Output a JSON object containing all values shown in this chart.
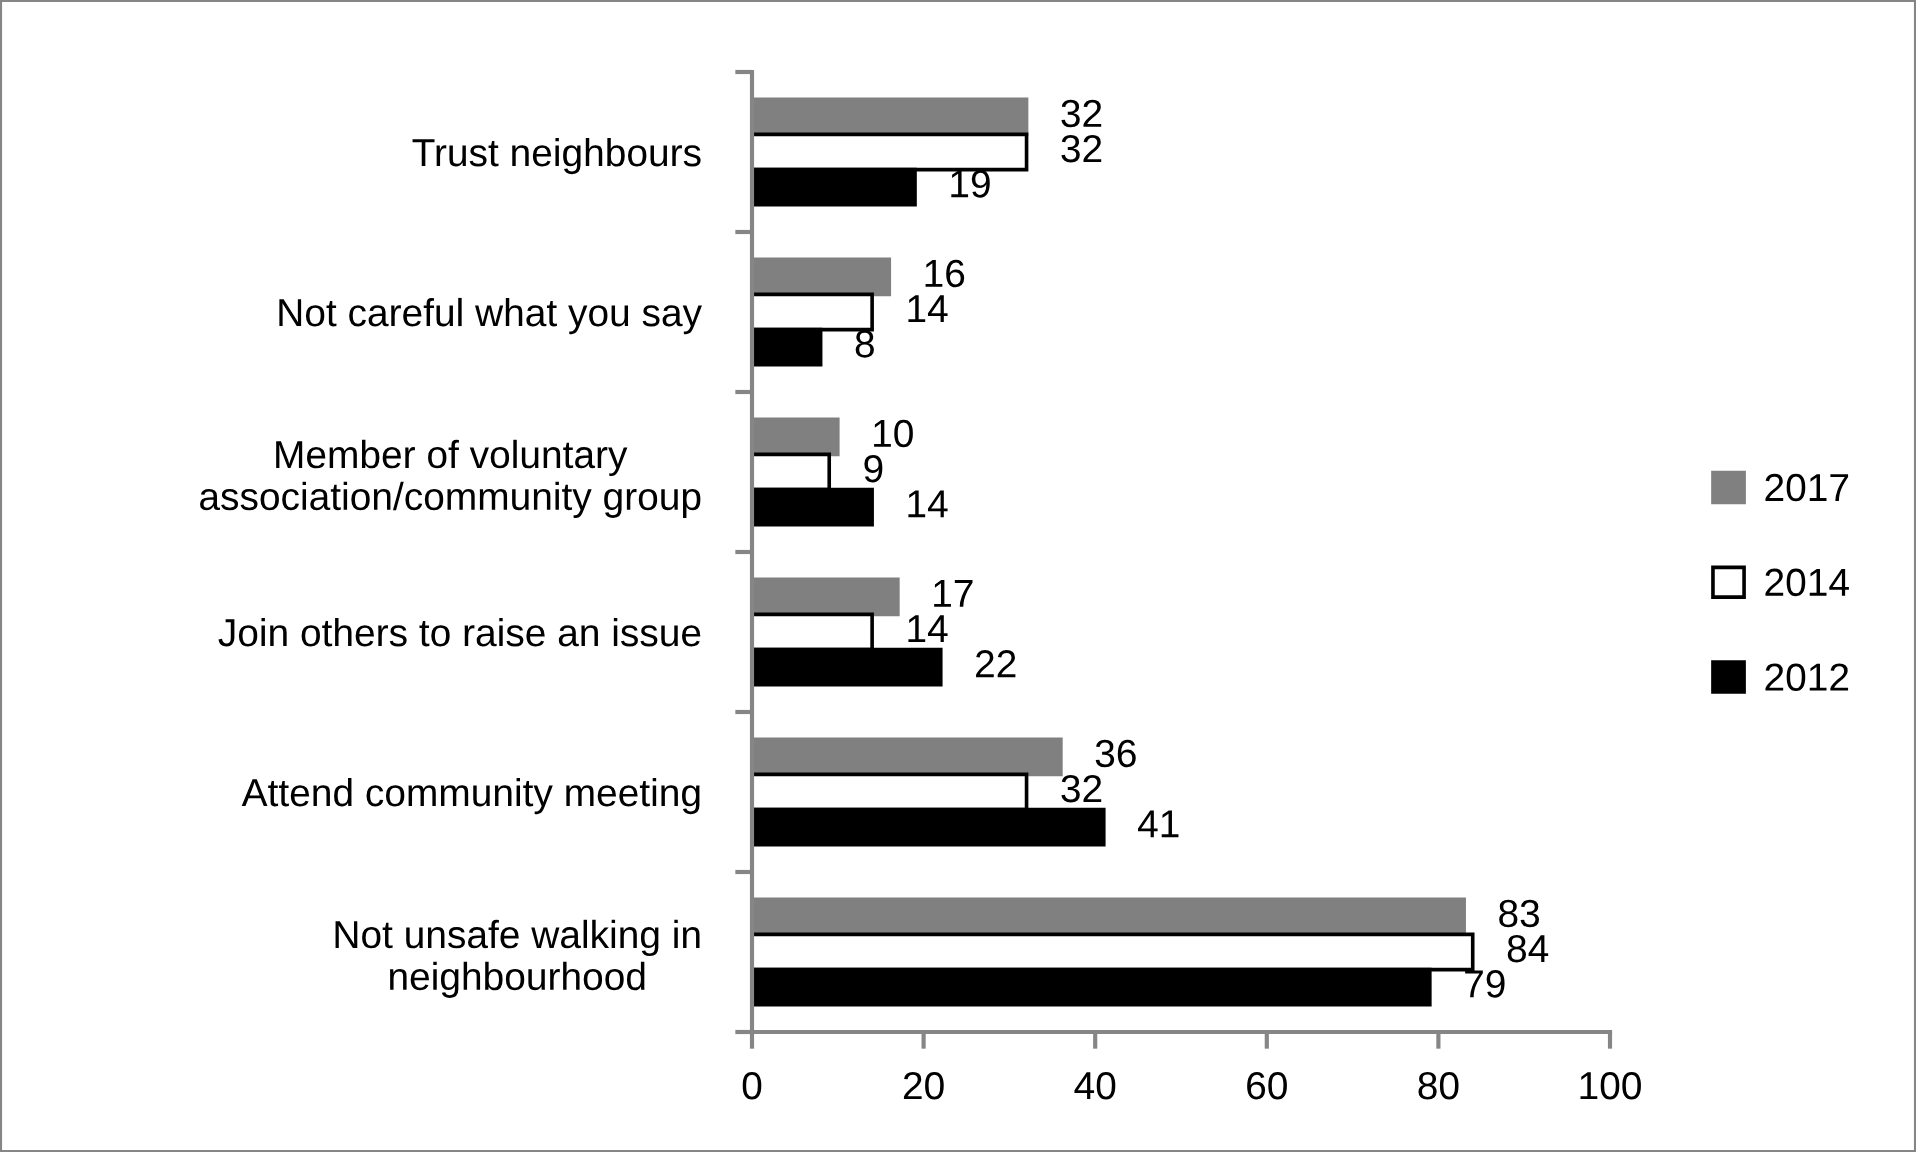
{
  "chart_data": {
    "type": "bar",
    "orientation": "horizontal",
    "categories": [
      "Trust neighbours",
      "Not careful what you say",
      "Member of voluntary\nassociation/community group",
      "Join others to raise an issue",
      "Attend community meeting",
      "Not unsafe walking in\nneighbourhood"
    ],
    "series": [
      {
        "name": "2017",
        "color": "#808080",
        "values": [
          32,
          16,
          10,
          17,
          36,
          83
        ]
      },
      {
        "name": "2014",
        "color": "#ffffff",
        "values": [
          32,
          14,
          9,
          14,
          32,
          84
        ]
      },
      {
        "name": "2012",
        "color": "#000000",
        "values": [
          19,
          8,
          14,
          22,
          41,
          79
        ]
      }
    ],
    "xlim": [
      0,
      100
    ],
    "xticks": [
      0,
      20,
      40,
      60,
      80,
      100
    ],
    "data_labels": true,
    "legend": "right",
    "grid": false
  }
}
